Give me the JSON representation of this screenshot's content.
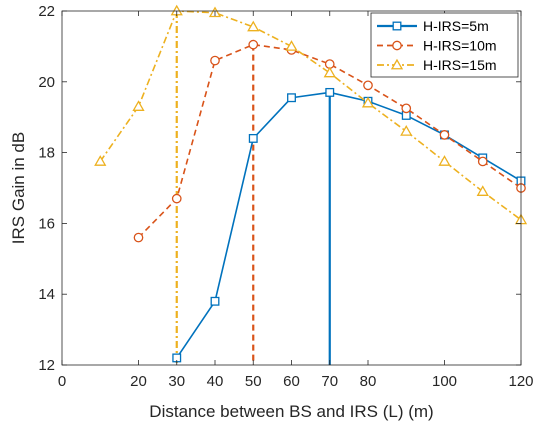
{
  "chart_data": {
    "type": "line",
    "xlabel": "Distance between BS and IRS (L) (m)",
    "ylabel": "IRS Gain in dB",
    "xlim": [
      0,
      120
    ],
    "ylim": [
      12,
      22
    ],
    "xticks": [
      0,
      20,
      30,
      40,
      50,
      60,
      70,
      80,
      100,
      120
    ],
    "yticks": [
      12,
      14,
      16,
      18,
      20,
      22
    ],
    "grid": false,
    "legend_position": "top-right",
    "series": [
      {
        "name": "H-IRS=5m",
        "color": "#0072BD",
        "marker": "square",
        "line_style": "solid",
        "x": [
          30,
          40,
          50,
          60,
          70,
          80,
          90,
          100,
          110,
          120
        ],
        "y": [
          12.2,
          13.8,
          18.4,
          19.55,
          19.7,
          19.45,
          19.05,
          18.5,
          17.85,
          17.2
        ],
        "optimum": {
          "x": 70,
          "y": 19.7
        }
      },
      {
        "name": "H-IRS=10m",
        "color": "#D95319",
        "marker": "circle",
        "line_style": "dashed",
        "x": [
          20,
          30,
          40,
          50,
          60,
          70,
          80,
          90,
          100,
          110,
          120
        ],
        "y": [
          15.6,
          16.7,
          20.6,
          21.05,
          20.9,
          20.5,
          19.9,
          19.25,
          18.5,
          17.75,
          17.0
        ],
        "optimum": {
          "x": 50,
          "y": 21.05
        }
      },
      {
        "name": "H-IRS=15m",
        "color": "#EDB120",
        "marker": "triangle",
        "line_style": "dashdot",
        "x": [
          10,
          20,
          30,
          40,
          50,
          60,
          70,
          80,
          90,
          100,
          110,
          120
        ],
        "y": [
          17.75,
          19.3,
          22.0,
          21.95,
          21.55,
          21.0,
          20.25,
          19.4,
          18.6,
          17.75,
          16.9,
          16.1
        ],
        "optimum": {
          "x": 30,
          "y": 22.0
        }
      }
    ]
  }
}
